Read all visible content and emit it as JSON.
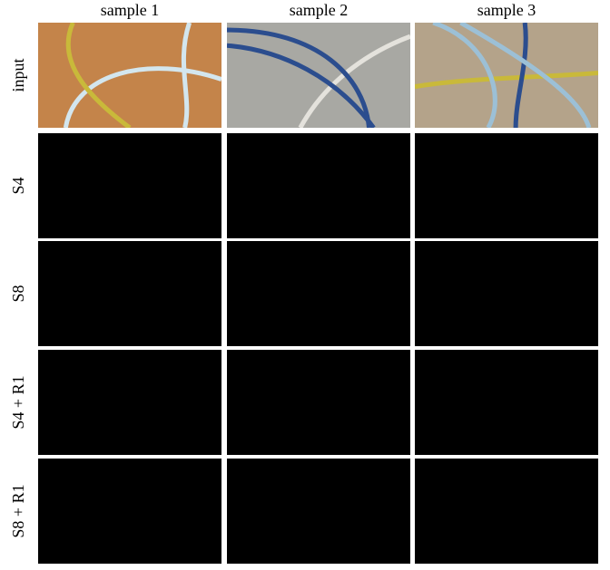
{
  "column_headers": [
    "sample 1",
    "sample 2",
    "sample 3"
  ],
  "row_labels": [
    "input",
    "S4",
    "S8",
    "S4 + R1",
    "S8 + R1"
  ]
}
